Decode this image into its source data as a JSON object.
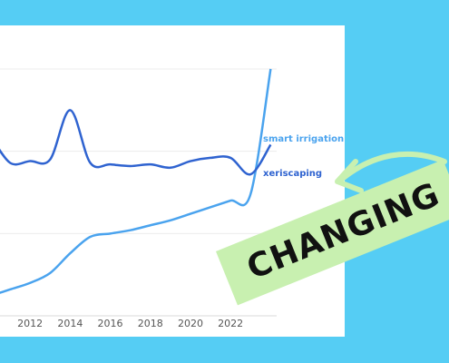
{
  "chart_data": {
    "type": "line",
    "x": [
      2010,
      2011,
      2012,
      2013,
      2014,
      2015,
      2016,
      2017,
      2018,
      2019,
      2020,
      2021,
      2022,
      2023,
      2024
    ],
    "series": [
      {
        "name": "smart irrigation",
        "color": "#4aa3ee",
        "values": [
          12,
          16,
          20,
          26,
          38,
          48,
          50,
          52,
          55,
          58,
          62,
          66,
          70,
          74,
          150
        ]
      },
      {
        "name": "xeriscaping",
        "color": "#2f63d0",
        "values": [
          110,
          93,
          94,
          95,
          125,
          93,
          92,
          91,
          92,
          90,
          94,
          96,
          96,
          86,
          104
        ]
      }
    ],
    "x_tick_labels": [
      "2012",
      "2014",
      "2016",
      "2018",
      "2020",
      "2022"
    ],
    "xlim": [
      2010.5,
      2024.3
    ],
    "ylim": [
      0,
      150
    ],
    "grid": true,
    "legend": "line-end labels"
  },
  "overlay": {
    "banner_text": "CHANGING",
    "banner_color": "#c8f0b0",
    "arrow_color": "#c8f0b0",
    "background_color": "#55cdf4"
  }
}
